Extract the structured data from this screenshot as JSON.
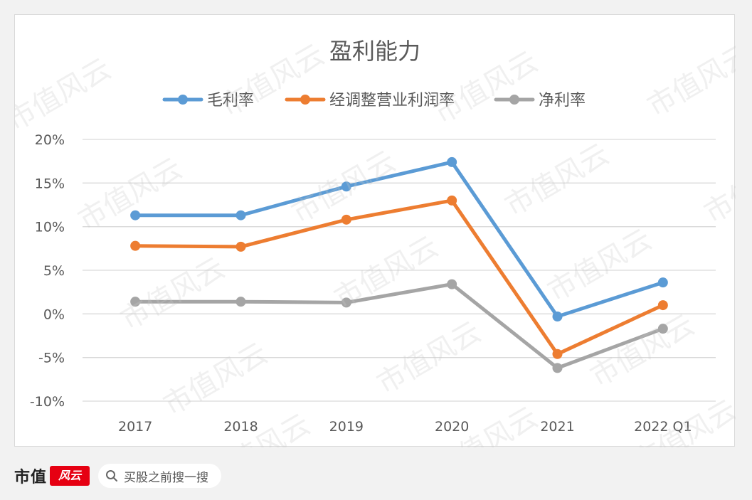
{
  "chart_data": {
    "type": "line",
    "title": "盈利能力",
    "categories": [
      "2017",
      "2018",
      "2019",
      "2020",
      "2021",
      "2022 Q1"
    ],
    "ylim": [
      -10,
      20
    ],
    "yticks": [
      "20%",
      "15%",
      "10%",
      "5%",
      "0%",
      "-5%",
      "-10%"
    ],
    "ytick_values": [
      20,
      15,
      10,
      5,
      0,
      -5,
      -10
    ],
    "grid": true,
    "legend_position": "top",
    "series": [
      {
        "name": "毛利率",
        "color": "#5b9bd5",
        "values": [
          11.3,
          11.3,
          14.6,
          17.4,
          -0.3,
          3.6
        ]
      },
      {
        "name": "经调整营业利润率",
        "color": "#ed7d31",
        "values": [
          7.8,
          7.7,
          10.8,
          13.0,
          -4.6,
          1.0
        ]
      },
      {
        "name": "净利率",
        "color": "#a5a5a5",
        "values": [
          1.4,
          1.4,
          1.3,
          3.4,
          -6.2,
          -1.7
        ]
      }
    ]
  },
  "watermark": "市值风云",
  "footer": {
    "brand": "市值",
    "brand_logo": "风云",
    "search_text": "买股之前搜一搜"
  }
}
